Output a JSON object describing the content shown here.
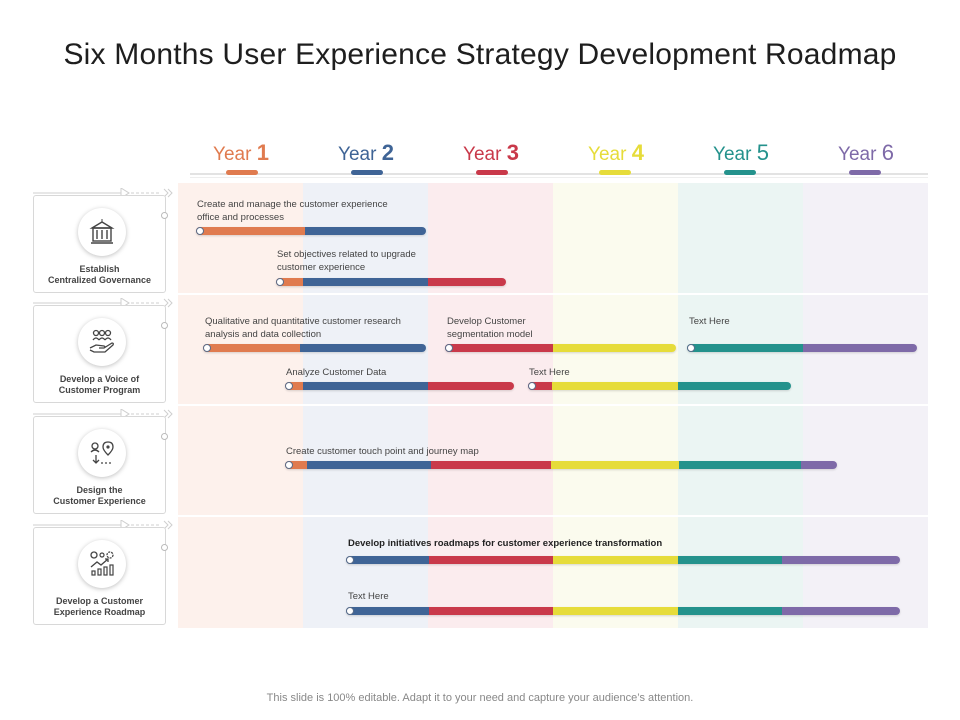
{
  "title": "Six Months User Experience Strategy Development Roadmap",
  "years": [
    {
      "word": "Year",
      "num": "1",
      "color": "#e07b4f"
    },
    {
      "word": "Year",
      "num": "2",
      "color": "#3f6496"
    },
    {
      "word": "Year",
      "num": "3",
      "color": "#c9394a"
    },
    {
      "word": "Year",
      "num": "4",
      "color": "#e6dc3a"
    },
    {
      "word": "Year",
      "num": "5",
      "color": "#24928c"
    },
    {
      "word": "Year",
      "num": "6",
      "color": "#7e6aa8"
    }
  ],
  "column_tints": [
    "#fdf1ec",
    "#eef1f7",
    "#fbecee",
    "#fbfbee",
    "#ebf5f3",
    "#f3f1f7"
  ],
  "categories": [
    {
      "label": "Establish\nCentralized Governance",
      "icon": "building-icon"
    },
    {
      "label": "Develop a Voice of\nCustomer Program",
      "icon": "hand-people-icon"
    },
    {
      "label": "Design the\nCustomer Experience",
      "icon": "journey-map-icon"
    },
    {
      "label": "Develop a Customer\nExperience Roadmap",
      "icon": "growth-chart-icon"
    }
  ],
  "tasks": [
    {
      "text": "Create and manage the customer experience\noffice and processes",
      "bold": false
    },
    {
      "text": "Set objectives related to upgrade\ncustomer experience",
      "bold": false
    },
    {
      "text": "Qualitative and quantitative customer research\nanalysis and data collection",
      "bold": false
    },
    {
      "text": "Develop Customer\nsegmentation model",
      "bold": false
    },
    {
      "text": "Text Here",
      "bold": false
    },
    {
      "text": "Analyze Customer Data",
      "bold": false
    },
    {
      "text": "Text Here",
      "bold": false
    },
    {
      "text": "Create customer touch point and journey map",
      "bold": false
    },
    {
      "text": "Develop initiatives roadmaps for customer experience transformation",
      "bold": true
    },
    {
      "text": "Text Here",
      "bold": false
    }
  ],
  "footer": "This slide is 100% editable. Adapt it to your need and capture your audience’s attention."
}
